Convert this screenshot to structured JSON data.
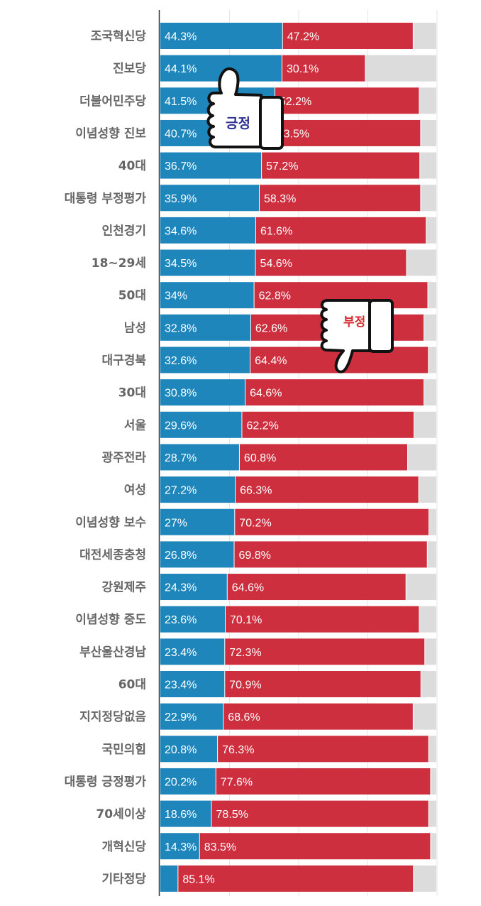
{
  "chart_data": {
    "type": "bar",
    "stacked": true,
    "orientation": "horizontal",
    "xlim": [
      0,
      100
    ],
    "grid": true,
    "categories": [
      "조국혁신당",
      "진보당",
      "더불어민주당",
      "이념성향 진보",
      "40대",
      "대통령 부정평가",
      "인천경기",
      "18~29세",
      "50대",
      "남성",
      "대구경북",
      "30대",
      "서울",
      "광주전라",
      "여성",
      "이념성향 보수",
      "대전세종충청",
      "강원제주",
      "이념성향 중도",
      "부산울산경남",
      "60대",
      "지지정당없음",
      "국민의힘",
      "대통령 긍정평가",
      "70세이상",
      "개혁신당",
      "기타정당"
    ],
    "series": [
      {
        "color": "#1f86bb",
        "values": [
          44.3,
          44.1,
          41.5,
          40.7,
          36.7,
          35.9,
          34.6,
          34.5,
          34,
          32.8,
          32.6,
          30.8,
          29.6,
          28.7,
          27.2,
          27,
          26.8,
          24.3,
          23.6,
          23.4,
          23.4,
          22.9,
          20.8,
          20.2,
          18.6,
          14.3,
          6.5
        ],
        "labels": [
          "44.3%",
          "44.1%",
          "41.5%",
          "40.7%",
          "36.7%",
          "35.9%",
          "34.6%",
          "34.5%",
          "34%",
          "32.8%",
          "32.6%",
          "30.8%",
          "29.6%",
          "28.7%",
          "27.2%",
          "27%",
          "26.8%",
          "24.3%",
          "23.6%",
          "23.4%",
          "23.4%",
          "22.9%",
          "20.8%",
          "20.2%",
          "18.6%",
          "14.3%",
          ""
        ]
      },
      {
        "color": "#cd2f3e",
        "values": [
          47.2,
          30.1,
          52.2,
          53.5,
          57.2,
          58.3,
          61.6,
          54.6,
          62.8,
          62.6,
          64.4,
          64.6,
          62.2,
          60.8,
          66.3,
          70.2,
          69.8,
          64.6,
          70.1,
          72.3,
          70.9,
          68.6,
          76.3,
          77.6,
          78.5,
          83.5,
          85.1
        ],
        "labels": [
          "47.2%",
          "30.1%",
          "52.2%",
          "53.5%",
          "57.2%",
          "58.3%",
          "61.6%",
          "54.6%",
          "62.8%",
          "62.6%",
          "64.4%",
          "64.6%",
          "62.2%",
          "60.8%",
          "66.3%",
          "70.2%",
          "69.8%",
          "64.6%",
          "70.1%",
          "72.3%",
          "70.9%",
          "68.6%",
          "76.3%",
          "77.6%",
          "78.5%",
          "83.5%",
          "85.1%"
        ]
      },
      {
        "color": "#dcdcdc",
        "values": [
          8.5,
          25.8,
          6.3,
          5.8,
          6.1,
          5.8,
          3.8,
          10.9,
          3.2,
          4.6,
          3.0,
          4.6,
          8.2,
          10.5,
          6.5,
          2.8,
          3.4,
          11.1,
          6.3,
          4.3,
          5.7,
          8.5,
          2.9,
          2.2,
          2.9,
          2.2,
          8.4
        ],
        "labels": []
      }
    ]
  },
  "badges": {
    "positive": {
      "label": "긍정",
      "icon": "thumbs-up-icon",
      "color": "#2e3192"
    },
    "negative": {
      "label": "부정",
      "icon": "thumbs-down-icon",
      "color": "#d7282f"
    }
  }
}
